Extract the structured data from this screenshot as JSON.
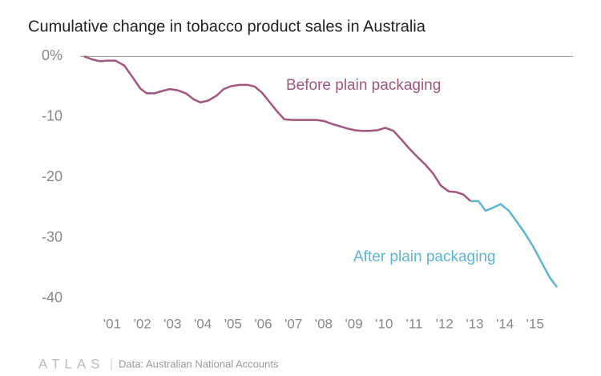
{
  "chart_data": {
    "type": "line",
    "title": "Cumulative change in tobacco product sales in Australia",
    "source": "Data: Australian National Accounts",
    "logo": "ATLAS",
    "xlim": [
      1999.94,
      2016.25
    ],
    "ylim": [
      -41,
      1.5
    ],
    "xticks": [
      {
        "value": 2001,
        "label": "'01"
      },
      {
        "value": 2002,
        "label": "'02"
      },
      {
        "value": 2003,
        "label": "'03"
      },
      {
        "value": 2004,
        "label": "'04"
      },
      {
        "value": 2005,
        "label": "'05"
      },
      {
        "value": 2006,
        "label": "'06"
      },
      {
        "value": 2007,
        "label": "'07"
      },
      {
        "value": 2008,
        "label": "'08"
      },
      {
        "value": 2009,
        "label": "'09"
      },
      {
        "value": 2010,
        "label": "'10"
      },
      {
        "value": 2011,
        "label": "'11"
      },
      {
        "value": 2012,
        "label": "'12"
      },
      {
        "value": 2013,
        "label": "'13"
      },
      {
        "value": 2014,
        "label": "'14"
      },
      {
        "value": 2015,
        "label": "'15"
      }
    ],
    "yticks": [
      {
        "value": 0,
        "label": "0%"
      },
      -10,
      -20,
      -30,
      -40
    ],
    "zero_line": true,
    "series": [
      {
        "name": "Before plain packaging",
        "color": "#a3547f",
        "x": [
          2000.07,
          2000.34,
          2000.6,
          2000.84,
          2001.11,
          2001.4,
          2001.67,
          2001.93,
          2002.14,
          2002.4,
          2002.67,
          2002.91,
          2003.17,
          2003.44,
          2003.7,
          2003.92,
          2004.18,
          2004.45,
          2004.69,
          2004.95,
          2005.22,
          2005.48,
          2005.72,
          2005.96,
          2006.22,
          2006.46,
          2006.7,
          2006.97,
          2007.23,
          2007.5,
          2007.76,
          2008.03,
          2008.24,
          2008.51,
          2008.77,
          2009.04,
          2009.27,
          2009.51,
          2009.78,
          2010.04,
          2010.31,
          2010.55,
          2010.81,
          2011.1,
          2011.37,
          2011.63,
          2011.87,
          2012.14,
          2012.38,
          2012.62,
          2012.86
        ],
        "values": [
          0,
          -0.5,
          -0.8,
          -0.7,
          -0.7,
          -1.5,
          -3.4,
          -5.3,
          -6.1,
          -6.1,
          -5.7,
          -5.4,
          -5.6,
          -6.1,
          -7.1,
          -7.6,
          -7.3,
          -6.5,
          -5.4,
          -4.9,
          -4.7,
          -4.7,
          -5.0,
          -6.0,
          -7.6,
          -9.1,
          -10.4,
          -10.5,
          -10.5,
          -10.5,
          -10.5,
          -10.7,
          -11.1,
          -11.5,
          -11.9,
          -12.2,
          -12.3,
          -12.3,
          -12.2,
          -11.8,
          -12.3,
          -13.6,
          -15.1,
          -16.6,
          -17.9,
          -19.4,
          -21.3,
          -22.3,
          -22.4,
          -22.8,
          -23.9
        ]
      },
      {
        "name": "After plain packaging",
        "color": "#5bb5d5",
        "x": [
          2012.86,
          2013.12,
          2013.36,
          2013.6,
          2013.86,
          2014.13,
          2014.39,
          2014.66,
          2014.92,
          2015.19,
          2015.48,
          2015.72
        ],
        "values": [
          -23.9,
          -23.9,
          -25.5,
          -25.0,
          -24.4,
          -25.5,
          -27.3,
          -29.2,
          -31.3,
          -33.8,
          -36.5,
          -38.1
        ]
      }
    ]
  }
}
